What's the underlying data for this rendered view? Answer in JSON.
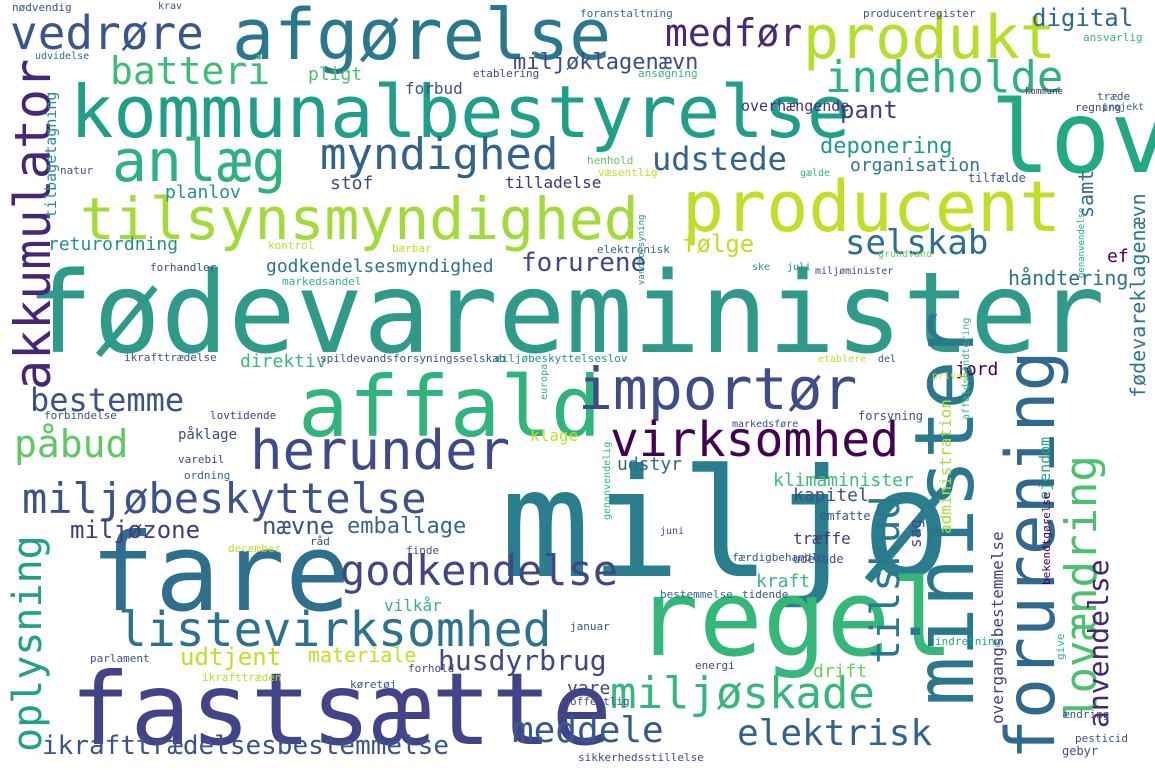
{
  "wordcloud": {
    "words": [
      {
        "text": "fødevareminister",
        "color": "#2f9a8a"
      },
      {
        "text": "miljø",
        "color": "#2a7d8c"
      },
      {
        "text": "fare",
        "color": "#2e6f8e"
      },
      {
        "text": "fastsætte",
        "color": "#414487"
      },
      {
        "text": "regel",
        "color": "#35b779"
      },
      {
        "text": "kommunalbestyrelse",
        "color": "#1f9e89"
      },
      {
        "text": "afgørelse",
        "color": "#2a788e"
      },
      {
        "text": "lov",
        "color": "#22a884"
      },
      {
        "text": "producent",
        "color": "#bddf26"
      },
      {
        "text": "produkt",
        "color": "#b5de2b"
      },
      {
        "text": "affald",
        "color": "#2fb47c"
      },
      {
        "text": "importør",
        "color": "#3e4c8a"
      },
      {
        "text": "minister",
        "color": "#2a788e"
      },
      {
        "text": "forurening",
        "color": "#31688e"
      },
      {
        "text": "tilsynsmyndighed",
        "color": "#a2da37"
      },
      {
        "text": "anlæg",
        "color": "#2db27d"
      },
      {
        "text": "vedrøre",
        "color": "#39568c"
      },
      {
        "text": "akkumulator",
        "color": "#482677"
      },
      {
        "text": "herunder",
        "color": "#3e4a89"
      },
      {
        "text": "virksomhed",
        "color": "#440154"
      },
      {
        "text": "miljøbeskyttelse",
        "color": "#3b528b"
      },
      {
        "text": "listevirksomhed",
        "color": "#2c728e"
      },
      {
        "text": "godkendelse",
        "color": "#3f4788"
      },
      {
        "text": "miljøskade",
        "color": "#35b779"
      },
      {
        "text": "indeholde",
        "color": "#2db27d"
      },
      {
        "text": "myndighed",
        "color": "#33638d"
      },
      {
        "text": "medfør",
        "color": "#482878"
      },
      {
        "text": "batteri",
        "color": "#3dbc74"
      },
      {
        "text": "påbud",
        "color": "#5ec962"
      },
      {
        "text": "bestemme",
        "color": "#3b528b"
      },
      {
        "text": "tilskud",
        "color": "#2a788e"
      },
      {
        "text": "lovændring",
        "color": "#4ac16d"
      },
      {
        "text": "selskab",
        "color": "#2d708e"
      },
      {
        "text": "udstede",
        "color": "#33638d"
      },
      {
        "text": "oplysning",
        "color": "#1fa088"
      },
      {
        "text": "meddele",
        "color": "#38598c"
      },
      {
        "text": "elektrisk",
        "color": "#33638d"
      },
      {
        "text": "ikrafttrædelsesbestemmelse",
        "color": "#3a548c"
      },
      {
        "text": "husdyrbrug",
        "color": "#3f4788"
      },
      {
        "text": "anvendelse",
        "color": "#482475"
      },
      {
        "text": "emballage",
        "color": "#31688e"
      },
      {
        "text": "nævne",
        "color": "#3b528b"
      },
      {
        "text": "miljøklagenævn",
        "color": "#3e4a89"
      },
      {
        "text": "digital",
        "color": "#31688e"
      },
      {
        "text": "pant",
        "color": "#433e85"
      },
      {
        "text": "deponering",
        "color": "#1f9a8a"
      },
      {
        "text": "forurene",
        "color": "#3e4989"
      },
      {
        "text": "følge",
        "color": "#bddf26"
      },
      {
        "text": "godkendelsesmyndighed",
        "color": "#2c728e"
      },
      {
        "text": "udtjent",
        "color": "#bddf26"
      },
      {
        "text": "miljøzone",
        "color": "#443983"
      },
      {
        "text": "fødevareklagenævn",
        "color": "#2a788e"
      },
      {
        "text": "samt",
        "color": "#2e6e8e"
      },
      {
        "text": "håndtering",
        "color": "#2c728e"
      },
      {
        "text": "klimaminister",
        "color": "#3dbc74"
      },
      {
        "text": "kapitel",
        "color": "#3b528b"
      },
      {
        "text": "overhængende",
        "color": "#46307e"
      },
      {
        "text": "pligt",
        "color": "#4ac16d"
      },
      {
        "text": "forbud",
        "color": "#3b528b"
      },
      {
        "text": "tilladelse",
        "color": "#46307e"
      },
      {
        "text": "stof",
        "color": "#3e4a89"
      },
      {
        "text": "planlov",
        "color": "#21918c"
      },
      {
        "text": "returordning",
        "color": "#21918c"
      },
      {
        "text": "organisation",
        "color": "#2a788e"
      },
      {
        "text": "jord",
        "color": "#440154"
      },
      {
        "text": "direktiv",
        "color": "#38b977"
      },
      {
        "text": "udstyr",
        "color": "#31688e"
      },
      {
        "text": "klage",
        "color": "#bddf26"
      },
      {
        "text": "administration",
        "color": "#a8db34"
      },
      {
        "text": "materiale",
        "color": "#c2df23"
      },
      {
        "text": "drift",
        "color": "#6ece58"
      },
      {
        "text": "vare",
        "color": "#414487"
      },
      {
        "text": "kraft",
        "color": "#38b977"
      },
      {
        "text": "træffe",
        "color": "#443983"
      },
      {
        "text": "vilkår",
        "color": "#35b779"
      },
      {
        "text": "overgangsbestemmelse",
        "color": "#433e85"
      },
      {
        "text": "ejendom",
        "color": "#22a884"
      },
      {
        "text": "sag",
        "color": "#3e4a89"
      },
      {
        "text": "ef",
        "color": "#440154"
      },
      {
        "text": "ansvarlig",
        "color": "#35b779"
      },
      {
        "text": "etablering",
        "color": "#3e4a89"
      },
      {
        "text": "ansøgning",
        "color": "#38b977"
      },
      {
        "text": "foranstaltning",
        "color": "#2c728e"
      },
      {
        "text": "producentregister",
        "color": "#3b528b"
      },
      {
        "text": "nødvendig",
        "color": "#3b528b"
      },
      {
        "text": "krav",
        "color": "#3b528b"
      },
      {
        "text": "udvidelse",
        "color": "#31688e"
      },
      {
        "text": "tilbagetagning",
        "color": "#21918c"
      },
      {
        "text": "natur",
        "color": "#3b528b"
      },
      {
        "text": "henhold",
        "color": "#5ec962"
      },
      {
        "text": "væsentlig",
        "color": "#bddf26"
      },
      {
        "text": "gælde",
        "color": "#35b779"
      },
      {
        "text": "tilfælde",
        "color": "#3b528b"
      },
      {
        "text": "regning",
        "color": "#433e85"
      },
      {
        "text": "projekt",
        "color": "#31688e"
      },
      {
        "text": "træde",
        "color": "#3b528b"
      },
      {
        "text": "kommune",
        "color": "#482878"
      },
      {
        "text": "kontrol",
        "color": "#b5de2b"
      },
      {
        "text": "bærbar",
        "color": "#bddf26"
      },
      {
        "text": "elektronisk",
        "color": "#31688e"
      },
      {
        "text": "vandforsyning",
        "color": "#21918c"
      },
      {
        "text": "grundvand",
        "color": "#6ece58"
      },
      {
        "text": "genanvendelse",
        "color": "#22a884"
      },
      {
        "text": "forhandler",
        "color": "#3e4a89"
      },
      {
        "text": "markedsandel",
        "color": "#35b779"
      },
      {
        "text": "ske",
        "color": "#21918c"
      },
      {
        "text": "juli",
        "color": "#21918c"
      },
      {
        "text": "miljøminister",
        "color": "#3e4a89"
      },
      {
        "text": "ikrafttrædelse",
        "color": "#3b528b"
      },
      {
        "text": "spildevandsforsyningsselskab",
        "color": "#3b528b"
      },
      {
        "text": "miljøbeskyttelseslov",
        "color": "#21918c"
      },
      {
        "text": "etablere",
        "color": "#bddf26"
      },
      {
        "text": "del",
        "color": "#3b528b"
      },
      {
        "text": "affaldshåndtering",
        "color": "#35b779"
      },
      {
        "text": "europa",
        "color": "#35b779"
      },
      {
        "text": "privat",
        "color": "#bddf26"
      },
      {
        "text": "forbindelse",
        "color": "#3b528b"
      },
      {
        "text": "lovtidende",
        "color": "#433e85"
      },
      {
        "text": "forsyning",
        "color": "#3b528b"
      },
      {
        "text": "markedsføre",
        "color": "#3e4a89"
      },
      {
        "text": "påklage",
        "color": "#3e4a89"
      },
      {
        "text": "varebil",
        "color": "#3e4a89"
      },
      {
        "text": "ordning",
        "color": "#31688e"
      },
      {
        "text": "genanvendelig",
        "color": "#35b779"
      },
      {
        "text": "omfatte",
        "color": "#3b528b"
      },
      {
        "text": "udelade",
        "color": "#3b528b"
      },
      {
        "text": "bekendtgørelse",
        "color": "#440154"
      },
      {
        "text": "juni",
        "color": "#3b528b"
      },
      {
        "text": "råd",
        "color": "#3e4a89"
      },
      {
        "text": "december",
        "color": "#bddf26"
      },
      {
        "text": "finde",
        "color": "#3b528b"
      },
      {
        "text": "færdigbehandle",
        "color": "#3b528b"
      },
      {
        "text": "bestemmelse",
        "color": "#31688e"
      },
      {
        "text": "tidende",
        "color": "#3b528b"
      },
      {
        "text": "januar",
        "color": "#3b528b"
      },
      {
        "text": "indretning",
        "color": "#22a884"
      },
      {
        "text": "energi",
        "color": "#3e4a89"
      },
      {
        "text": "give",
        "color": "#35b779"
      },
      {
        "text": "parlament",
        "color": "#3b528b"
      },
      {
        "text": "forhold",
        "color": "#3e4a89"
      },
      {
        "text": "ikrafttræden",
        "color": "#b5de2b"
      },
      {
        "text": "køretøj",
        "color": "#3b528b"
      },
      {
        "text": "offentlig",
        "color": "#3e4a89"
      },
      {
        "text": "ændring",
        "color": "#3b528b"
      },
      {
        "text": "pesticid",
        "color": "#3b528b"
      },
      {
        "text": "gebyr",
        "color": "#3b528b"
      },
      {
        "text": "sikkerhedsstillelse",
        "color": "#3e4a89"
      }
    ]
  }
}
